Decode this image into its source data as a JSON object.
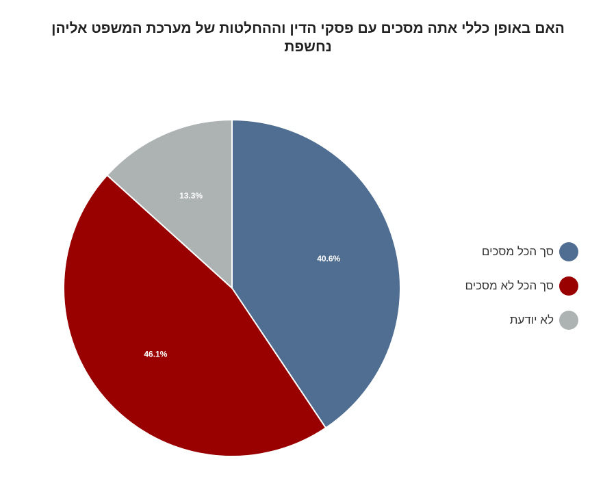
{
  "chart_data": {
    "type": "pie",
    "title": "האם באופן כללי אתה מסכים עם פסקי הדין וההחלטות של מערכת המשפט אליהן נחשפת",
    "legend_position": "right",
    "slices": [
      {
        "label": "סך הכל מסכים",
        "value": 40.6,
        "value_label": "40.6%",
        "color": "#506e91"
      },
      {
        "label": "סך הכל לא מסכים",
        "value": 46.1,
        "value_label": "46.1%",
        "color": "#990000"
      },
      {
        "label": "לא יודעת",
        "value": 13.3,
        "value_label": "13.3%",
        "color": "#adb2b3"
      }
    ]
  }
}
